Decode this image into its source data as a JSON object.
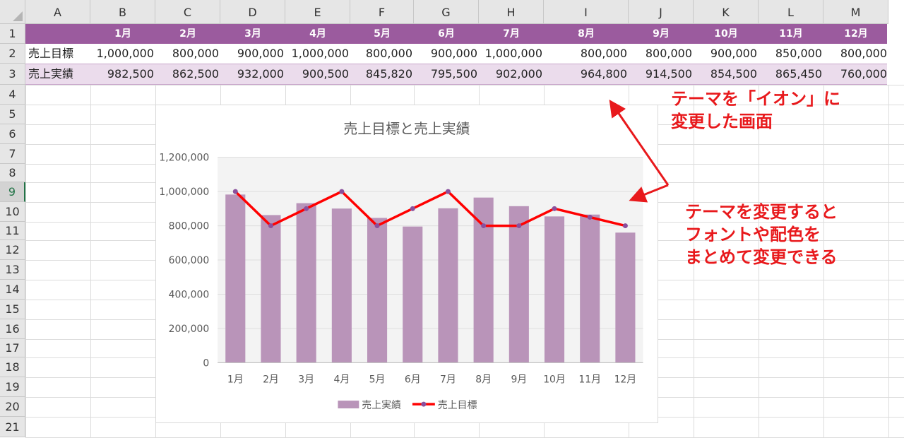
{
  "spreadsheet": {
    "columns": [
      "A",
      "B",
      "C",
      "D",
      "E",
      "F",
      "G",
      "H",
      "I",
      "J",
      "K",
      "L",
      "M"
    ],
    "rows": [
      "1",
      "2",
      "3",
      "4",
      "5",
      "6",
      "7",
      "8",
      "9",
      "10",
      "11",
      "12",
      "13",
      "14",
      "15",
      "16",
      "17",
      "18",
      "19",
      "20",
      "21"
    ],
    "selected_row": "9",
    "months": [
      "1月",
      "2月",
      "3月",
      "4月",
      "5月",
      "6月",
      "7月",
      "8月",
      "9月",
      "10月",
      "11月",
      "12月"
    ],
    "target_label": "売上目標",
    "actual_label": "売上実績",
    "target_values": [
      "1,000,000",
      "800,000",
      "900,000",
      "1,000,000",
      "800,000",
      "900,000",
      "1,000,000",
      "800,000",
      "800,000",
      "900,000",
      "850,000",
      "800,000"
    ],
    "actual_values": [
      "982,500",
      "862,500",
      "932,000",
      "900,500",
      "845,820",
      "795,500",
      "902,000",
      "964,800",
      "914,500",
      "854,500",
      "865,450",
      "760,000"
    ],
    "header_color": "#9b5b9e",
    "row3_color": "#ebdcec"
  },
  "chart_data": {
    "type": "bar",
    "title": "売上目標と売上実績",
    "categories": [
      "1月",
      "2月",
      "3月",
      "4月",
      "5月",
      "6月",
      "7月",
      "8月",
      "9月",
      "10月",
      "11月",
      "12月"
    ],
    "series": [
      {
        "name": "売上実績",
        "type": "bar",
        "color": "#b994b9",
        "values": [
          982500,
          862500,
          932000,
          900500,
          845820,
          795500,
          902000,
          964800,
          914500,
          854500,
          865450,
          760000
        ]
      },
      {
        "name": "売上目標",
        "type": "line",
        "color": "#ff0000",
        "marker_color": "#8a4f9c",
        "values": [
          1000000,
          800000,
          900000,
          1000000,
          800000,
          900000,
          1000000,
          800000,
          800000,
          900000,
          850000,
          800000
        ]
      }
    ],
    "ylim": [
      0,
      1200000
    ],
    "yticks": [
      "0",
      "200,000",
      "400,000",
      "600,000",
      "800,000",
      "1,000,000",
      "1,200,000"
    ],
    "legend": "bottom",
    "grid": true
  },
  "annotations": {
    "note1_line1": "テーマを「イオン」に",
    "note1_line2": "変更した画面",
    "note2_line1": "テーマを変更すると",
    "note2_line2": "フォントや配色を",
    "note2_line3": "まとめて変更できる",
    "color": "#e8191c"
  }
}
